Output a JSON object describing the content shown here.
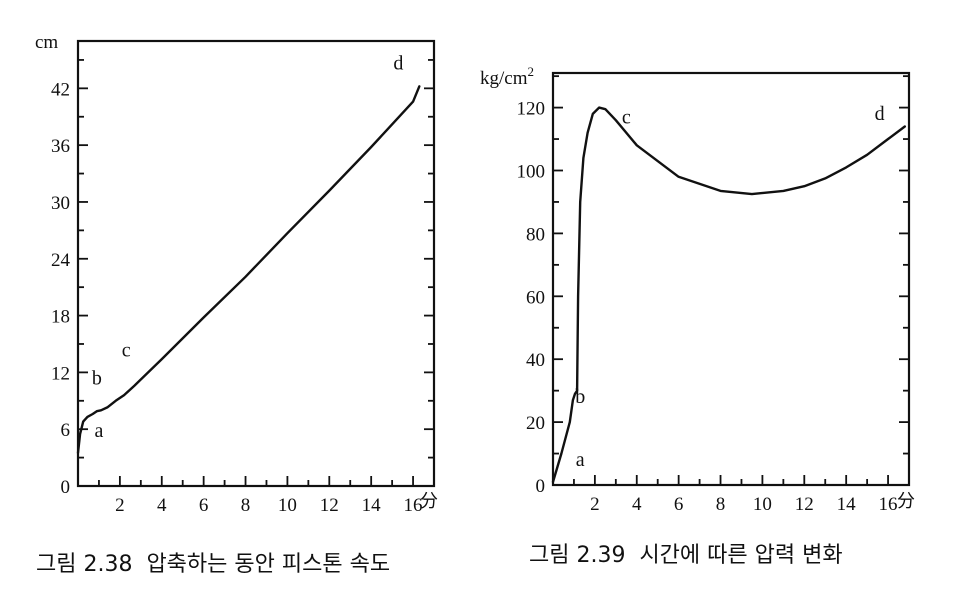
{
  "chart_data": [
    {
      "type": "line",
      "caption": "그림 2.38  압축하는 동안 피스톤 속도",
      "y_unit": "cm",
      "x_unit": "分",
      "x_ticks": [
        2,
        4,
        6,
        8,
        10,
        12,
        14,
        16
      ],
      "y_ticks": [
        0,
        6,
        12,
        18,
        24,
        30,
        36,
        42
      ],
      "xlim": [
        0,
        17
      ],
      "ylim": [
        0,
        47
      ],
      "grid": false,
      "series": [
        {
          "x": [
            0,
            0.1,
            0.25,
            0.45,
            0.7,
            0.9,
            1.1,
            1.4,
            1.8,
            2.2,
            2.7,
            4,
            6,
            8,
            10,
            12,
            14,
            16,
            16.3
          ],
          "y": [
            3.5,
            5.5,
            6.8,
            7.3,
            7.6,
            7.9,
            8.0,
            8.3,
            9.0,
            9.6,
            10.6,
            13.4,
            17.8,
            22.1,
            26.7,
            31.2,
            35.8,
            40.6,
            42.2
          ]
        }
      ],
      "annotations": [
        {
          "text": "a",
          "x": 1.0,
          "y": 5.2
        },
        {
          "text": "b",
          "x": 0.9,
          "y": 10.7
        },
        {
          "text": "c",
          "x": 2.3,
          "y": 13.7
        },
        {
          "text": "d",
          "x": 15.3,
          "y": 44.0
        }
      ]
    },
    {
      "type": "line",
      "caption": "그림 2.39  시간에 따른 압력 변화",
      "y_unit": "kg/cm",
      "y_unit_sup": "2",
      "x_unit": "分",
      "x_ticks": [
        2,
        4,
        6,
        8,
        10,
        12,
        14,
        16
      ],
      "y_ticks": [
        0,
        20,
        40,
        60,
        80,
        100,
        120
      ],
      "xlim": [
        0,
        17
      ],
      "ylim": [
        0,
        131
      ],
      "grid": false,
      "series": [
        {
          "x": [
            0,
            0.4,
            0.8,
            0.95,
            1.05,
            1.15,
            1.2,
            1.3,
            1.45,
            1.65,
            1.9,
            2.2,
            2.5,
            3,
            4,
            6,
            8,
            9.5,
            11,
            12,
            13,
            14,
            15,
            16,
            16.8
          ],
          "y": [
            1,
            10,
            20,
            27,
            29,
            30,
            60,
            90,
            104,
            112,
            118,
            120,
            119.5,
            116,
            108,
            98,
            93.5,
            92.5,
            93.5,
            95,
            97.5,
            101,
            105,
            110,
            114
          ]
        }
      ],
      "annotations": [
        {
          "text": "a",
          "x": 1.3,
          "y": 6
        },
        {
          "text": "b",
          "x": 1.3,
          "y": 26
        },
        {
          "text": "c",
          "x": 3.5,
          "y": 115
        },
        {
          "text": "d",
          "x": 15.6,
          "y": 116
        }
      ]
    }
  ]
}
